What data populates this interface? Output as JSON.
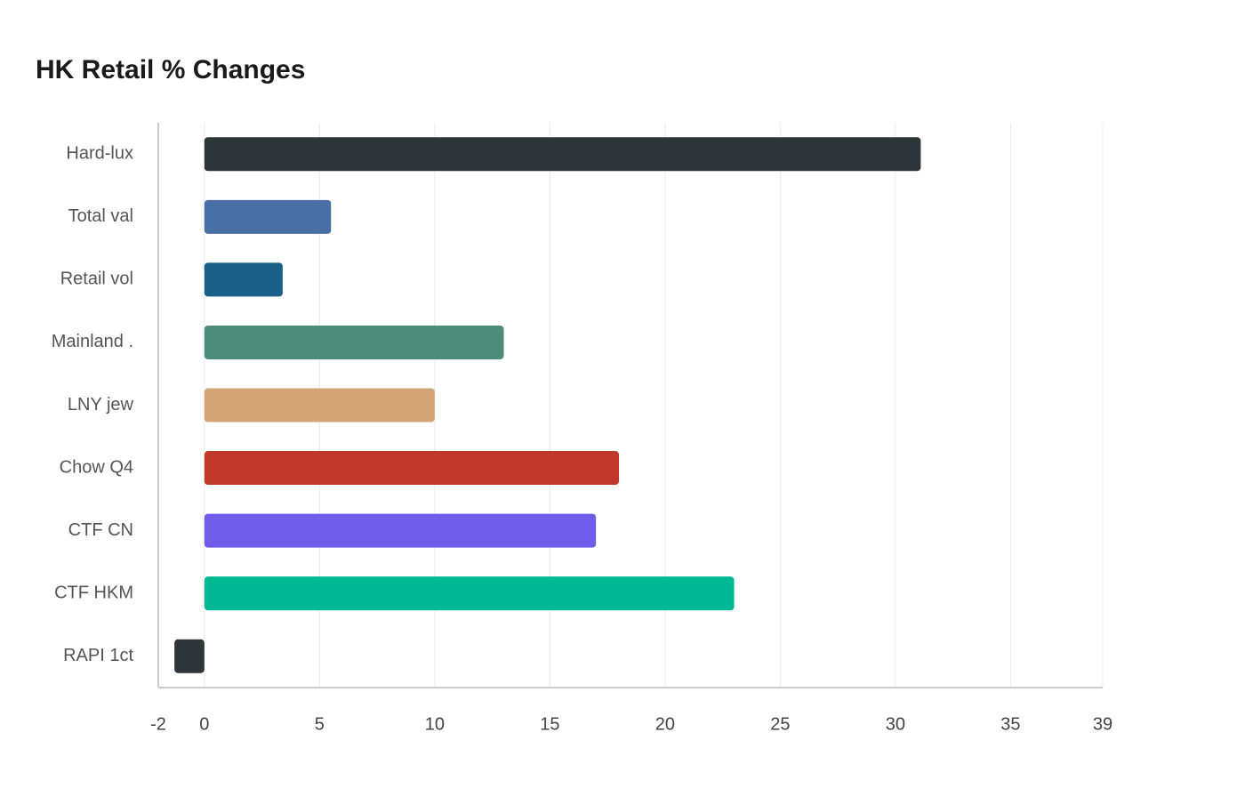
{
  "chart_data": {
    "type": "bar",
    "orientation": "horizontal",
    "title": "HK Retail % Changes",
    "categories": [
      "Hard-lux",
      "Total val",
      "Retail vol",
      "Mainland .",
      "LNY jew",
      "Chow Q4",
      "CTF CN",
      "CTF HKM",
      "RAPI 1ct"
    ],
    "values": [
      31.1,
      5.5,
      3.4,
      13.0,
      10.0,
      18.0,
      17.0,
      23.0,
      -1.3
    ],
    "colors": [
      "#2e3538",
      "#4a6fa5",
      "#1a5f87",
      "#4e8c7a",
      "#d4a574",
      "#c0392b",
      "#6f5ce8",
      "#00b894",
      "#2e3538"
    ],
    "xlim": [
      -2,
      39
    ],
    "xticks": [
      -2,
      0,
      5,
      10,
      15,
      20,
      25,
      30,
      35,
      39
    ],
    "grid": true
  }
}
